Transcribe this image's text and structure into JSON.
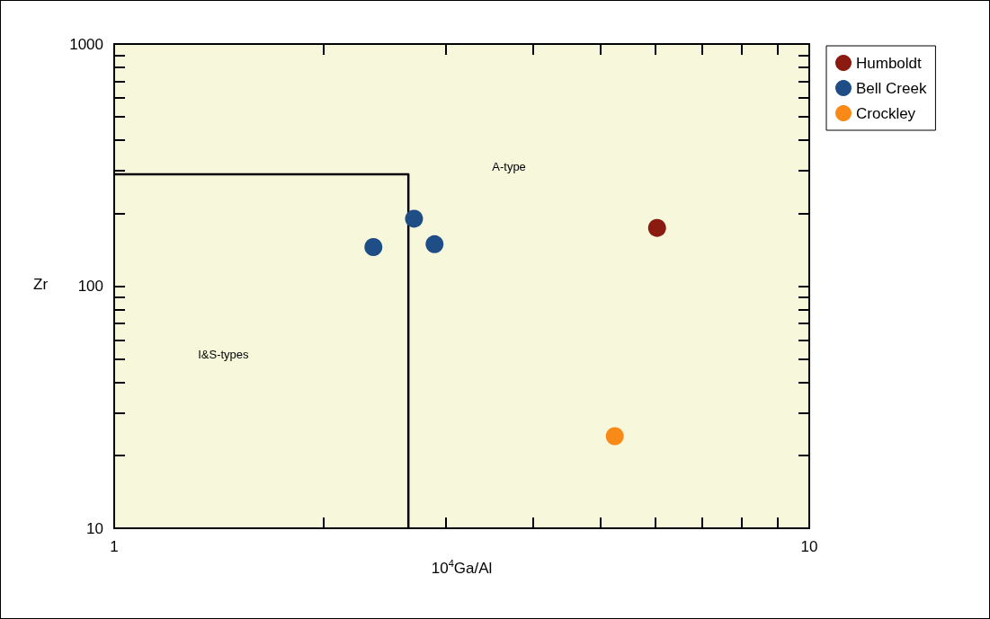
{
  "chart_data": {
    "type": "scatter",
    "xlabel": "10$^{4}$Ga/Al",
    "ylabel": "Zr",
    "log": "xy",
    "xlim": [
      1,
      10
    ],
    "ylim": [
      10,
      1000
    ],
    "xticks": [
      1,
      {
        "value": 2,
        "label": null
      },
      {
        "value": 3,
        "label": null
      },
      {
        "value": 4,
        "label": null
      },
      {
        "value": 5,
        "label": null
      },
      {
        "value": 6,
        "label": null
      },
      {
        "value": 7,
        "label": null
      },
      {
        "value": 8,
        "label": null
      },
      {
        "value": 9,
        "label": null
      },
      10
    ],
    "yticks": [
      10,
      {
        "value": 20,
        "label": null
      },
      {
        "value": 30,
        "label": null
      },
      {
        "value": 40,
        "label": null
      },
      {
        "value": 50,
        "label": null
      },
      {
        "value": 60,
        "label": null
      },
      {
        "value": 70,
        "label": null
      },
      {
        "value": 80,
        "label": null
      },
      {
        "value": 90,
        "label": null
      },
      100,
      {
        "value": 200,
        "label": null
      },
      {
        "value": 300,
        "label": null
      },
      {
        "value": 400,
        "label": null
      },
      {
        "value": 500,
        "label": null
      },
      {
        "value": 600,
        "label": null
      },
      {
        "value": 700,
        "label": null
      },
      {
        "value": 800,
        "label": null
      },
      {
        "value": 900,
        "label": null
      },
      1000
    ],
    "grid": false,
    "legend": "top right",
    "marker": "circle",
    "series": [
      {
        "name": "Humboldt",
        "color": "#8b1a10",
        "x": [
          6.04
        ],
        "values": [
          174
        ]
      },
      {
        "name": "Bell Creek",
        "color": "#1f4e87",
        "x": [
          2.36,
          2.7,
          2.89
        ],
        "values": [
          145,
          190,
          149
        ]
      },
      {
        "name": "Crockley",
        "color": "#f98a17",
        "x": [
          5.25
        ],
        "values": [
          24
        ]
      },
      {
        "type": "line",
        "color": "#000000",
        "marker": "none",
        "x": [
          1,
          2.65,
          2.65
        ],
        "values": [
          290,
          290,
          10
        ]
      }
    ],
    "annotations": [
      "A-type",
      "I&S-types"
    ]
  }
}
